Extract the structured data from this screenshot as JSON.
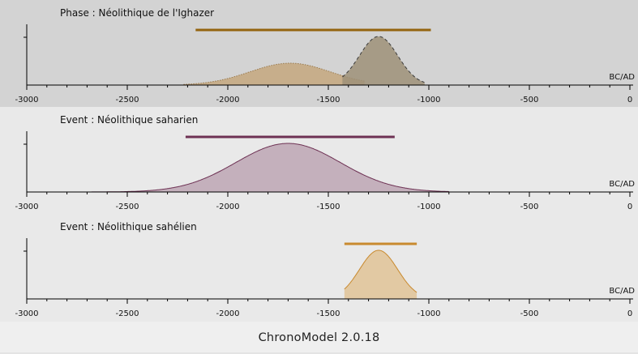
{
  "footer": {
    "app_label": "ChronoModel 2.0.18"
  },
  "colors": {
    "panel_selected_bg": "#d3d3d3",
    "panel_bg": "#e9e9e9",
    "axis": "#000000",
    "phase_bar": "#94640f",
    "saharien": "#6e3254",
    "sahelien": "#c98a2f",
    "ighazer_curve_fill": "#c4a77e",
    "ighazer_peak_fill": "#9d9178"
  },
  "chart_data": [
    {
      "type": "area",
      "title": "Phase : Néolithique de l'Ighazer",
      "xlabel": "BC/AD",
      "xlim": [
        -3000,
        0
      ],
      "x_ticks": [
        -3000,
        -2500,
        -2000,
        -1500,
        -1000,
        -500,
        0
      ],
      "x_tick_labels": [
        "-3000",
        "-2500",
        "-2000",
        "-1500",
        "-1000",
        "-500",
        "0"
      ],
      "selected": true,
      "range_bar": {
        "start": -2160,
        "end": -990,
        "color": "#94640f"
      },
      "series": [
        {
          "style": "dotted",
          "peak_x": -1690,
          "spread": 200,
          "height": 0.45,
          "range": [
            -2220,
            -1320
          ],
          "fill": "#c4a77e",
          "stroke": "#9a7a4d"
        },
        {
          "style": "dashed",
          "peak_x": -1250,
          "spread": 95,
          "height": 1.0,
          "range": [
            -1430,
            -1020
          ],
          "fill": "#9d9178",
          "stroke": "#3a3a3a"
        }
      ]
    },
    {
      "type": "area",
      "title": "Event : Néolithique saharien",
      "xlabel": "BC/AD",
      "xlim": [
        -3000,
        0
      ],
      "x_ticks": [
        -3000,
        -2500,
        -2000,
        -1500,
        -1000,
        -500,
        0
      ],
      "x_tick_labels": [
        "-3000",
        "-2500",
        "-2000",
        "-1500",
        "-1000",
        "-500",
        "0"
      ],
      "selected": false,
      "range_bar": {
        "start": -2210,
        "end": -1170,
        "color": "#6e3254"
      },
      "series": [
        {
          "style": "solid",
          "peak_x": -1700,
          "spread": 260,
          "height": 1.0,
          "range": [
            -2900,
            -900
          ],
          "fill": "#c4b0bc",
          "stroke": "#6e3254"
        }
      ]
    },
    {
      "type": "area",
      "title": "Event : Néolithique sahélien",
      "xlabel": "BC/AD",
      "xlim": [
        -3000,
        0
      ],
      "x_ticks": [
        -3000,
        -2500,
        -2000,
        -1500,
        -1000,
        -500,
        0
      ],
      "x_tick_labels": [
        "-3000",
        "-2500",
        "-2000",
        "-1500",
        "-1000",
        "-500",
        "0"
      ],
      "selected": false,
      "range_bar": {
        "start": -1420,
        "end": -1060,
        "color": "#c98a2f"
      },
      "series": [
        {
          "style": "solid",
          "peak_x": -1250,
          "spread": 95,
          "height": 1.0,
          "range": [
            -1420,
            -1060
          ],
          "fill": "#e2c9a3",
          "stroke": "#c98a2f"
        }
      ]
    }
  ]
}
